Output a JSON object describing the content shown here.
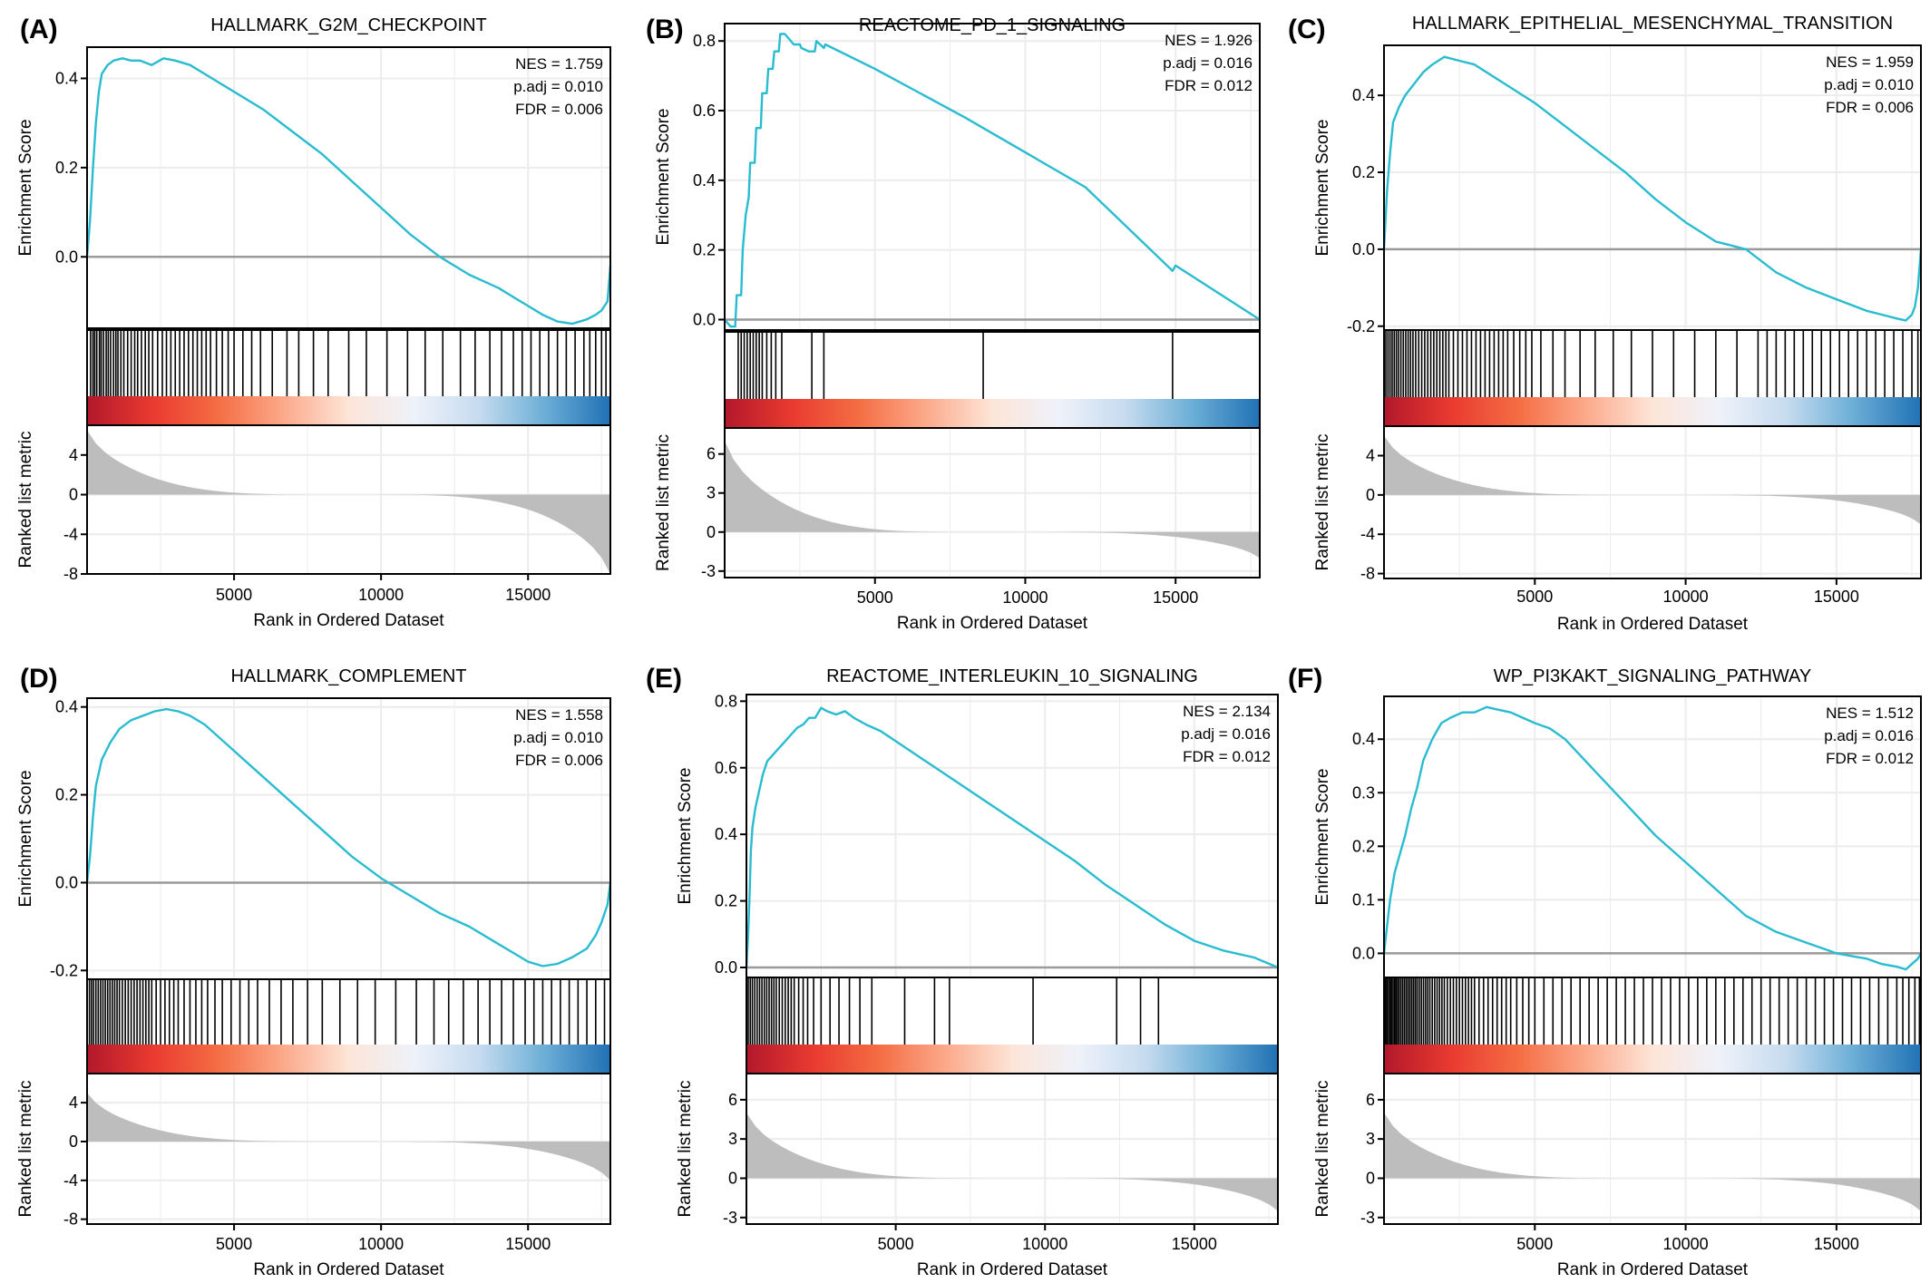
{
  "figure": {
    "panel_count": 6
  },
  "colors": {
    "es_line": "#29BCD1",
    "zero_line": "#9a9a9a",
    "metric_fill": "#bdbdbd",
    "grid": "#ececec",
    "hit_bar": "#000000",
    "axis": "#000000",
    "heat_gradient": [
      "#B2182B",
      "#E93A30",
      "#F46D43",
      "#FCA98A",
      "#FDE5D8",
      "#EEF2FA",
      "#C6DBEF",
      "#6BAED6",
      "#2171B5"
    ]
  },
  "chart_data": [
    {
      "type": "line",
      "panel_label": "(A)",
      "title": "HALLMARK_G2M_CHECKPOINT",
      "xlabel": "Rank in Ordered Dataset",
      "ylabel_top": "Enrichment Score",
      "ylabel_bottom": "Ranked list metric",
      "xlim": [
        0,
        17800
      ],
      "xticks": [
        5000,
        10000,
        15000
      ],
      "es_ylim": [
        -0.16,
        0.47
      ],
      "es_yticks": [
        0.0,
        0.2,
        0.4
      ],
      "es_curve": {
        "x": [
          0,
          100,
          200,
          300,
          400,
          500,
          700,
          900,
          1200,
          1500,
          1800,
          2200,
          2600,
          3000,
          3500,
          4000,
          4500,
          5000,
          6000,
          7000,
          8000,
          9000,
          10000,
          11000,
          12000,
          12500,
          13000,
          13500,
          14000,
          14500,
          15000,
          15500,
          16000,
          16500,
          17000,
          17300,
          17500,
          17600,
          17700,
          17800
        ],
        "y": [
          0.0,
          0.08,
          0.2,
          0.3,
          0.37,
          0.41,
          0.43,
          0.44,
          0.445,
          0.44,
          0.44,
          0.43,
          0.445,
          0.44,
          0.43,
          0.41,
          0.39,
          0.37,
          0.33,
          0.28,
          0.23,
          0.17,
          0.11,
          0.05,
          0.0,
          -0.02,
          -0.04,
          -0.055,
          -0.07,
          -0.09,
          -0.11,
          -0.13,
          -0.145,
          -0.15,
          -0.14,
          -0.13,
          -0.12,
          -0.11,
          -0.1,
          -0.02
        ]
      },
      "hits": [
        120,
        200,
        260,
        330,
        420,
        480,
        560,
        650,
        720,
        800,
        900,
        980,
        1050,
        1150,
        1250,
        1380,
        1500,
        1620,
        1720,
        1850,
        1980,
        2100,
        2230,
        2400,
        2560,
        2700,
        2850,
        3000,
        3150,
        3300,
        3450,
        3600,
        3750,
        3900,
        4050,
        4200,
        4400,
        4600,
        4800,
        5000,
        5300,
        5600,
        5900,
        6300,
        6800,
        7200,
        7700,
        8200,
        8900,
        9500,
        10200,
        10900,
        11500,
        12100,
        12700,
        13200,
        13700,
        14100,
        14500,
        14800,
        15100,
        15400,
        15700,
        16000,
        16300,
        16600,
        16900,
        17100,
        17300,
        17500,
        17650
      ],
      "metric_ylim": [
        -8,
        7
      ],
      "metric_yticks": [
        4,
        0,
        -4,
        -8
      ],
      "metric_start": 6.5,
      "metric_end": -8,
      "stats": [
        "NES = 1.759",
        "p.adj = 0.010",
        "FDR = 0.006"
      ]
    },
    {
      "type": "line",
      "panel_label": "(B)",
      "title": "REACTOME_PD_1_SIGNALING",
      "xlabel": "Rank in Ordered Dataset",
      "ylabel_top": "Enrichment Score",
      "ylabel_bottom": "Ranked list metric",
      "xlim": [
        0,
        17800
      ],
      "xticks": [
        5000,
        10000,
        15000
      ],
      "es_ylim": [
        -0.03,
        0.85
      ],
      "es_yticks": [
        0.0,
        0.2,
        0.4,
        0.6,
        0.8
      ],
      "es_curve": {
        "x": [
          0,
          200,
          350,
          400,
          550,
          600,
          700,
          800,
          850,
          1000,
          1050,
          1200,
          1250,
          1400,
          1450,
          1600,
          1650,
          1800,
          1850,
          2000,
          2300,
          2500,
          2550,
          2800,
          3000,
          3050,
          3300,
          3350,
          5000,
          8000,
          10000,
          12000,
          14900,
          15000,
          17800
        ],
        "y": [
          0.0,
          -0.02,
          -0.02,
          0.07,
          0.07,
          0.2,
          0.3,
          0.35,
          0.45,
          0.45,
          0.55,
          0.55,
          0.65,
          0.65,
          0.72,
          0.72,
          0.77,
          0.77,
          0.82,
          0.82,
          0.79,
          0.79,
          0.78,
          0.77,
          0.77,
          0.8,
          0.78,
          0.79,
          0.72,
          0.58,
          0.48,
          0.38,
          0.14,
          0.155,
          0.0
        ]
      },
      "hits": [
        450,
        550,
        650,
        750,
        850,
        950,
        1050,
        1150,
        1250,
        1400,
        1550,
        1700,
        1900,
        2900,
        3300,
        8600,
        14900
      ],
      "metric_ylim": [
        -3.5,
        8
      ],
      "metric_yticks": [
        6,
        3,
        0,
        -3
      ],
      "metric_start": 7,
      "metric_end": -2,
      "stats": [
        "NES = 1.926",
        "p.adj = 0.016",
        "FDR = 0.012"
      ]
    },
    {
      "type": "line",
      "panel_label": "(C)",
      "title": "HALLMARK_EPITHELIAL_MESENCHYMAL_TRANSITION",
      "xlabel": "Rank in Ordered Dataset",
      "ylabel_top": "Enrichment Score",
      "ylabel_bottom": "Ranked list metric",
      "xlim": [
        0,
        17800
      ],
      "xticks": [
        5000,
        10000,
        15000
      ],
      "es_ylim": [
        -0.21,
        0.53
      ],
      "es_yticks": [
        -0.2,
        0.0,
        0.2,
        0.4
      ],
      "es_curve": {
        "x": [
          0,
          100,
          200,
          300,
          500,
          700,
          1000,
          1300,
          1600,
          2000,
          2500,
          3000,
          4000,
          5000,
          6000,
          7000,
          8000,
          9000,
          10000,
          11000,
          12000,
          13000,
          14000,
          15000,
          16000,
          16500,
          17000,
          17300,
          17500,
          17600,
          17700,
          17800
        ],
        "y": [
          0.0,
          0.15,
          0.25,
          0.33,
          0.37,
          0.4,
          0.43,
          0.46,
          0.48,
          0.5,
          0.49,
          0.48,
          0.43,
          0.38,
          0.32,
          0.26,
          0.2,
          0.13,
          0.07,
          0.02,
          0.0,
          -0.06,
          -0.1,
          -0.13,
          -0.16,
          -0.17,
          -0.18,
          -0.185,
          -0.17,
          -0.15,
          -0.1,
          0.0
        ]
      },
      "hits": [
        60,
        130,
        200,
        270,
        340,
        410,
        480,
        560,
        640,
        720,
        800,
        880,
        960,
        1050,
        1150,
        1250,
        1350,
        1450,
        1550,
        1650,
        1750,
        1850,
        1950,
        2050,
        2150,
        2300,
        2450,
        2600,
        2750,
        2900,
        3050,
        3200,
        3350,
        3500,
        3650,
        3800,
        3950,
        4100,
        4300,
        4500,
        4700,
        4900,
        5200,
        5600,
        6000,
        6500,
        7000,
        7600,
        8200,
        8900,
        9600,
        10300,
        11000,
        11700,
        12400,
        12700,
        13000,
        13300,
        13600,
        13900,
        14200,
        14500,
        14800,
        15100,
        15400,
        15700,
        16000,
        16300,
        16600,
        16900,
        17200,
        17500,
        17700
      ],
      "metric_ylim": [
        -8.5,
        7
      ],
      "metric_yticks": [
        4,
        0,
        -4,
        -8
      ],
      "metric_start": 6,
      "metric_end": -3,
      "stats": [
        "NES = 1.959",
        "p.adj = 0.010",
        "FDR = 0.006"
      ]
    },
    {
      "type": "line",
      "panel_label": "(D)",
      "title": "HALLMARK_COMPLEMENT",
      "xlabel": "Rank in Ordered Dataset",
      "ylabel_top": "Enrichment Score",
      "ylabel_bottom": "Ranked list metric",
      "xlim": [
        0,
        17800
      ],
      "xticks": [
        5000,
        10000,
        15000
      ],
      "es_ylim": [
        -0.22,
        0.42
      ],
      "es_yticks": [
        -0.2,
        0.0,
        0.2,
        0.4
      ],
      "es_curve": {
        "x": [
          0,
          100,
          200,
          300,
          500,
          800,
          1100,
          1500,
          1900,
          2300,
          2700,
          3100,
          3500,
          4000,
          5000,
          6000,
          7000,
          8000,
          9000,
          10000,
          11000,
          12000,
          13000,
          14000,
          14500,
          15000,
          15500,
          16000,
          16500,
          17000,
          17300,
          17500,
          17700,
          17800
        ],
        "y": [
          0.0,
          0.06,
          0.15,
          0.22,
          0.28,
          0.32,
          0.35,
          0.37,
          0.38,
          0.39,
          0.395,
          0.39,
          0.38,
          0.36,
          0.3,
          0.24,
          0.18,
          0.12,
          0.06,
          0.01,
          -0.03,
          -0.07,
          -0.1,
          -0.14,
          -0.16,
          -0.18,
          -0.19,
          -0.185,
          -0.17,
          -0.15,
          -0.12,
          -0.09,
          -0.05,
          0.0
        ]
      },
      "hits": [
        80,
        150,
        220,
        300,
        380,
        460,
        540,
        620,
        700,
        780,
        860,
        940,
        1020,
        1100,
        1200,
        1300,
        1400,
        1500,
        1600,
        1700,
        1800,
        1900,
        2000,
        2100,
        2200,
        2350,
        2500,
        2650,
        2800,
        2950,
        3100,
        3300,
        3500,
        3700,
        3900,
        4100,
        4350,
        4600,
        4900,
        5200,
        5500,
        5800,
        6200,
        6600,
        7000,
        7500,
        8000,
        8600,
        9200,
        9800,
        10500,
        11200,
        11800,
        12300,
        12800,
        13300,
        13700,
        14100,
        14500,
        14900,
        15200,
        15500,
        15800,
        16100,
        16400,
        16700,
        17000,
        17300,
        17600
      ],
      "metric_ylim": [
        -8.5,
        7
      ],
      "metric_yticks": [
        4,
        0,
        -4,
        -8
      ],
      "metric_start": 5,
      "metric_end": -4,
      "stats": [
        "NES = 1.558",
        "p.adj = 0.010",
        "FDR = 0.006"
      ]
    },
    {
      "type": "line",
      "panel_label": "(E)",
      "title": "REACTOME_INTERLEUKIN_10_SIGNALING",
      "xlabel": "Rank in Ordered Dataset",
      "ylabel_top": "Enrichment Score",
      "ylabel_bottom": "Ranked list metric",
      "xlim": [
        0,
        17800
      ],
      "xticks": [
        5000,
        10000,
        15000
      ],
      "es_ylim": [
        -0.03,
        0.82
      ],
      "es_yticks": [
        0.0,
        0.2,
        0.4,
        0.6,
        0.8
      ],
      "es_curve": {
        "x": [
          0,
          50,
          100,
          150,
          200,
          300,
          400,
          550,
          700,
          900,
          1100,
          1300,
          1500,
          1700,
          1900,
          2100,
          2300,
          2500,
          2700,
          3000,
          3300,
          3600,
          4000,
          4500,
          5000,
          6000,
          7000,
          8000,
          9000,
          10000,
          11000,
          12000,
          13000,
          14000,
          15000,
          16000,
          17000,
          17800
        ],
        "y": [
          0.0,
          0.08,
          0.2,
          0.35,
          0.42,
          0.48,
          0.52,
          0.58,
          0.62,
          0.64,
          0.66,
          0.68,
          0.7,
          0.72,
          0.73,
          0.75,
          0.75,
          0.78,
          0.77,
          0.76,
          0.77,
          0.75,
          0.73,
          0.71,
          0.68,
          0.62,
          0.56,
          0.5,
          0.44,
          0.38,
          0.32,
          0.25,
          0.19,
          0.13,
          0.08,
          0.05,
          0.03,
          0.0
        ]
      },
      "hits": [
        60,
        130,
        200,
        280,
        360,
        440,
        520,
        600,
        680,
        760,
        840,
        920,
        1000,
        1100,
        1200,
        1300,
        1400,
        1500,
        1600,
        1750,
        1900,
        2050,
        2250,
        2500,
        2800,
        3100,
        3450,
        3800,
        4200,
        5300,
        6300,
        6800,
        9600,
        12400,
        13200,
        13800
      ],
      "metric_ylim": [
        -3.5,
        8
      ],
      "metric_yticks": [
        6,
        3,
        0,
        -3
      ],
      "metric_start": 5,
      "metric_end": -2.5,
      "stats": [
        "NES = 2.134",
        "p.adj = 0.016",
        "FDR = 0.012"
      ]
    },
    {
      "type": "line",
      "panel_label": "(F)",
      "title": "WP_PI3KAKT_SIGNALING_PATHWAY",
      "xlabel": "Rank in Ordered Dataset",
      "ylabel_top": "Enrichment Score",
      "ylabel_bottom": "Ranked list metric",
      "xlim": [
        0,
        17800
      ],
      "xticks": [
        5000,
        10000,
        15000
      ],
      "es_ylim": [
        -0.045,
        0.48
      ],
      "es_yticks": [
        0.0,
        0.1,
        0.2,
        0.3,
        0.4
      ],
      "es_curve": {
        "x": [
          0,
          100,
          200,
          350,
          500,
          700,
          900,
          1100,
          1300,
          1600,
          1900,
          2200,
          2600,
          3000,
          3400,
          3800,
          4200,
          4600,
          5000,
          5500,
          6000,
          7000,
          8000,
          9000,
          10000,
          11000,
          12000,
          13000,
          14000,
          15000,
          15500,
          16000,
          16500,
          17000,
          17300,
          17500,
          17700,
          17800
        ],
        "y": [
          0.0,
          0.05,
          0.1,
          0.15,
          0.18,
          0.22,
          0.27,
          0.31,
          0.36,
          0.4,
          0.43,
          0.44,
          0.45,
          0.45,
          0.46,
          0.455,
          0.45,
          0.44,
          0.43,
          0.42,
          0.4,
          0.34,
          0.28,
          0.22,
          0.17,
          0.12,
          0.07,
          0.04,
          0.02,
          0.0,
          -0.005,
          -0.01,
          -0.02,
          -0.025,
          -0.03,
          -0.02,
          -0.01,
          0.0
        ]
      },
      "hits": [
        50,
        100,
        150,
        200,
        250,
        300,
        350,
        400,
        450,
        500,
        560,
        620,
        680,
        740,
        800,
        860,
        920,
        980,
        1040,
        1100,
        1170,
        1240,
        1310,
        1380,
        1450,
        1520,
        1600,
        1680,
        1760,
        1840,
        1920,
        2000,
        2100,
        2200,
        2300,
        2400,
        2500,
        2600,
        2700,
        2800,
        2900,
        3000,
        3150,
        3300,
        3450,
        3600,
        3750,
        3900,
        4050,
        4200,
        4400,
        4600,
        4800,
        5000,
        5300,
        5600,
        5900,
        6200,
        6500,
        6800,
        7100,
        7400,
        7700,
        8000,
        8300,
        8600,
        8900,
        9200,
        9500,
        9800,
        10100,
        10400,
        10700,
        11000,
        11300,
        11600,
        11900,
        12200,
        12500,
        12800,
        13100,
        13400,
        13700,
        14000,
        14300,
        14600,
        14900,
        15200,
        15500,
        15800,
        16100,
        16400,
        16700,
        17000,
        17200,
        17400,
        17600,
        17750
      ],
      "metric_ylim": [
        -3.5,
        8
      ],
      "metric_yticks": [
        6,
        3,
        0,
        -3
      ],
      "metric_start": 5,
      "metric_end": -2.5,
      "stats": [
        "NES = 1.512",
        "p.adj = 0.016",
        "FDR = 0.012"
      ]
    }
  ]
}
